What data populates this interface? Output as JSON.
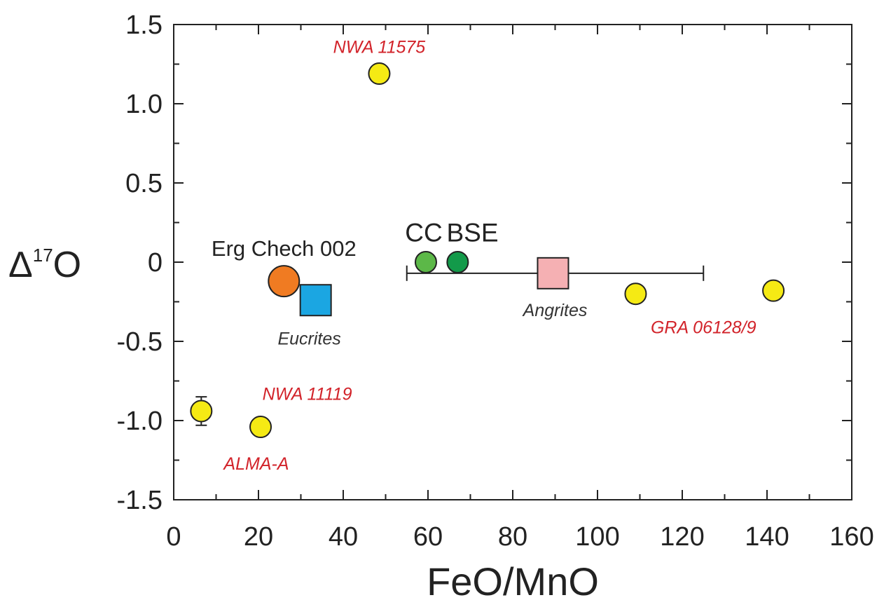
{
  "chart_data": {
    "type": "scatter",
    "xlabel": "FeO/MnO",
    "ylabel_main": "Δ",
    "ylabel_sup": "17",
    "ylabel_tail": "O",
    "xlim": [
      0,
      160
    ],
    "ylim": [
      -1.5,
      1.5
    ],
    "xticks": [
      0,
      20,
      40,
      60,
      80,
      100,
      120,
      140,
      160
    ],
    "yticks": [
      1.5,
      1.0,
      0.5,
      0,
      -0.5,
      -1.0,
      -1.5
    ],
    "ytick_labels": [
      "1.5",
      "1.0",
      "0.5",
      "0",
      "-0.5",
      "-1.0",
      "-1.5"
    ],
    "grid": false,
    "points": [
      {
        "x": 48.5,
        "y": 1.19,
        "marker": "circle",
        "color": "#f5ea14",
        "size": "small"
      },
      {
        "x": 6.5,
        "y": -0.94,
        "marker": "circle",
        "color": "#f5ea14",
        "size": "small",
        "yerr": 0.09
      },
      {
        "x": 20.5,
        "y": -1.04,
        "marker": "circle",
        "color": "#f5ea14",
        "size": "small"
      },
      {
        "x": 109,
        "y": -0.2,
        "marker": "circle",
        "color": "#f5ea14",
        "size": "small"
      },
      {
        "x": 141.5,
        "y": -0.18,
        "marker": "circle",
        "color": "#f5ea14",
        "size": "small"
      },
      {
        "x": 59.5,
        "y": 0.0,
        "marker": "circle",
        "color": "#5cb848",
        "size": "small"
      },
      {
        "x": 67,
        "y": 0.0,
        "marker": "circle",
        "color": "#139a4a",
        "size": "small"
      },
      {
        "x": 26,
        "y": -0.12,
        "marker": "circle",
        "color": "#f07b22",
        "size": "large"
      },
      {
        "x": 33.5,
        "y": -0.24,
        "marker": "square",
        "color": "#1ba6e2",
        "size": "large"
      },
      {
        "x": 89.5,
        "y": -0.07,
        "marker": "square",
        "color": "#f5b0b3",
        "size": "large",
        "xerr_range": [
          55,
          125
        ]
      }
    ],
    "annotations": [
      {
        "text": "NWA 11575",
        "x": 48.5,
        "y": 1.32,
        "style": "red"
      },
      {
        "text": "NWA 11119",
        "x": 31.5,
        "y": -0.87,
        "style": "red"
      },
      {
        "text": "ALMA-A",
        "x": 19.5,
        "y": -1.31,
        "style": "red"
      },
      {
        "text": "GRA 06128/9",
        "x": 125,
        "y": -0.45,
        "style": "red"
      },
      {
        "text": "Eucrites",
        "x": 32,
        "y": -0.52,
        "style": "dark"
      },
      {
        "text": "Angrites",
        "x": 90,
        "y": -0.34,
        "style": "dark"
      },
      {
        "text": "Erg Chech 002",
        "x": 26,
        "y": 0.04,
        "style": "black"
      },
      {
        "text": "CC",
        "x": 59,
        "y": 0.13,
        "style": "big"
      },
      {
        "text": "BSE",
        "x": 70.5,
        "y": 0.13,
        "style": "big"
      }
    ]
  }
}
